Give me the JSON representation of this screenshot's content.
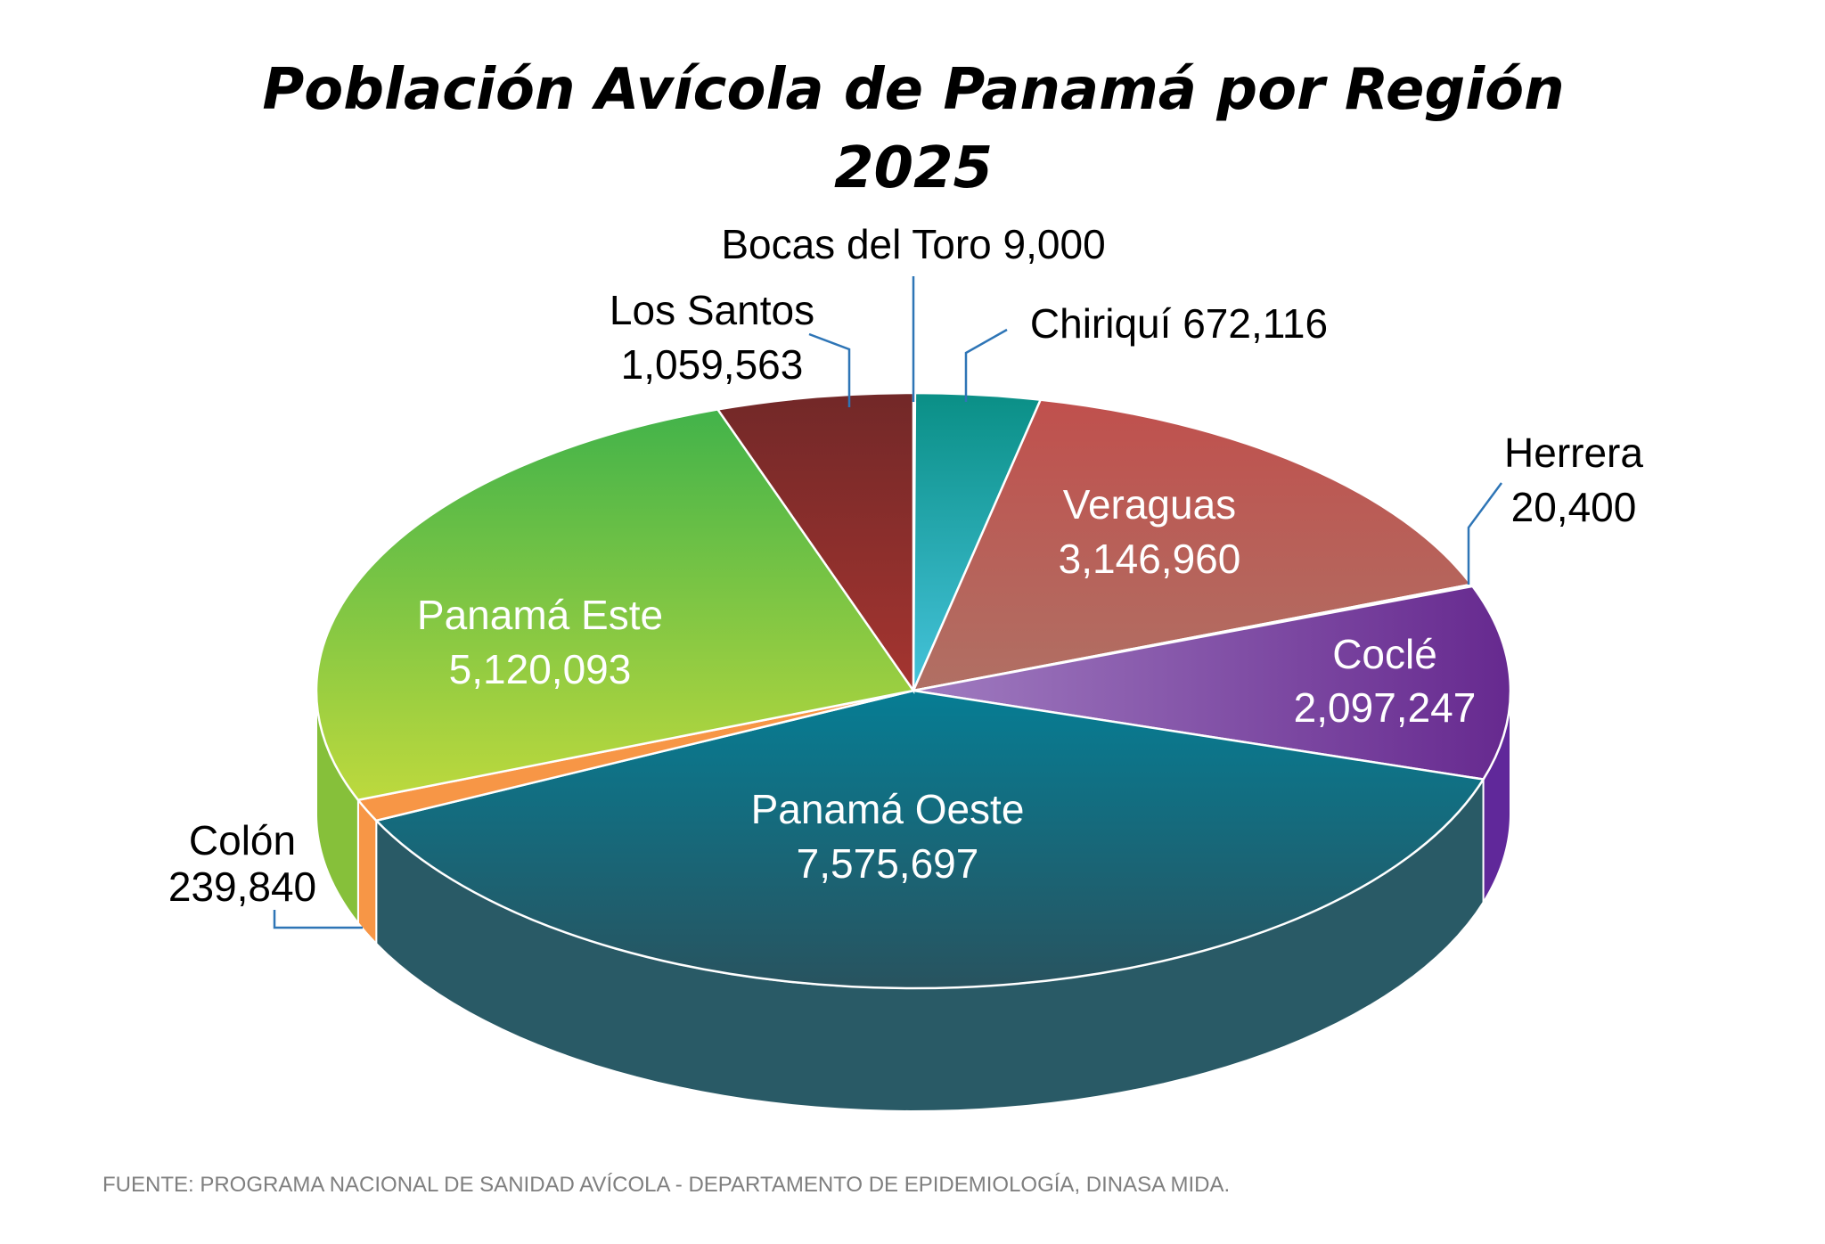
{
  "chart_data": {
    "type": "pie",
    "style": "3d",
    "title": [
      "Población Avícola de Panamá por Región",
      "2025"
    ],
    "source": "FUENTE: PROGRAMA NACIONAL DE SANIDAD AVÍCOLA -  DEPARTAMENTO DE EPIDEMIOLOGÍA, DINASA MIDA.",
    "slices": [
      {
        "name": "Bocas del Toro",
        "value": 9000,
        "value_label": "9,000",
        "color": "#2e9fb0",
        "color2": "#2e9fb0"
      },
      {
        "name": "Chiriquí",
        "value": 672116,
        "value_label": "672,116",
        "color": "#0a8f86",
        "color2": "#45c3db"
      },
      {
        "name": "Veraguas",
        "value": 3146960,
        "value_label": "3,146,960",
        "color": "#c0504d",
        "color2": "#b07064"
      },
      {
        "name": "Herrera",
        "value": 20400,
        "value_label": "20,400",
        "color": "#b05050",
        "color2": "#b05050"
      },
      {
        "name": "Coclé",
        "value": 2097247,
        "value_label": "2,097,247",
        "color": "#66298f",
        "color2": "#a07cc0"
      },
      {
        "name": "Panamá Oeste",
        "value": 7575697,
        "value_label": "7,575,697",
        "color": "#067d94",
        "color2": "#28535f"
      },
      {
        "name": "Colón",
        "value": 239840,
        "value_label": "239,840",
        "color": "#f79646",
        "color2": "#f79646"
      },
      {
        "name": "Panamá Este",
        "value": 5120093,
        "value_label": "5,120,093",
        "color": "#42b34a",
        "color2": "#bdd93d"
      },
      {
        "name": "Los Santos",
        "value": 1059563,
        "value_label": "1,059,563",
        "color": "#722828",
        "color2": "#a53530"
      }
    ],
    "side_colors": {
      "Panamá Oeste": "#295a66",
      "Coclé": "#60289a",
      "Panamá Este": "#86c03a",
      "Colón": "#f79646"
    },
    "leader_color": "#2e75b6"
  }
}
